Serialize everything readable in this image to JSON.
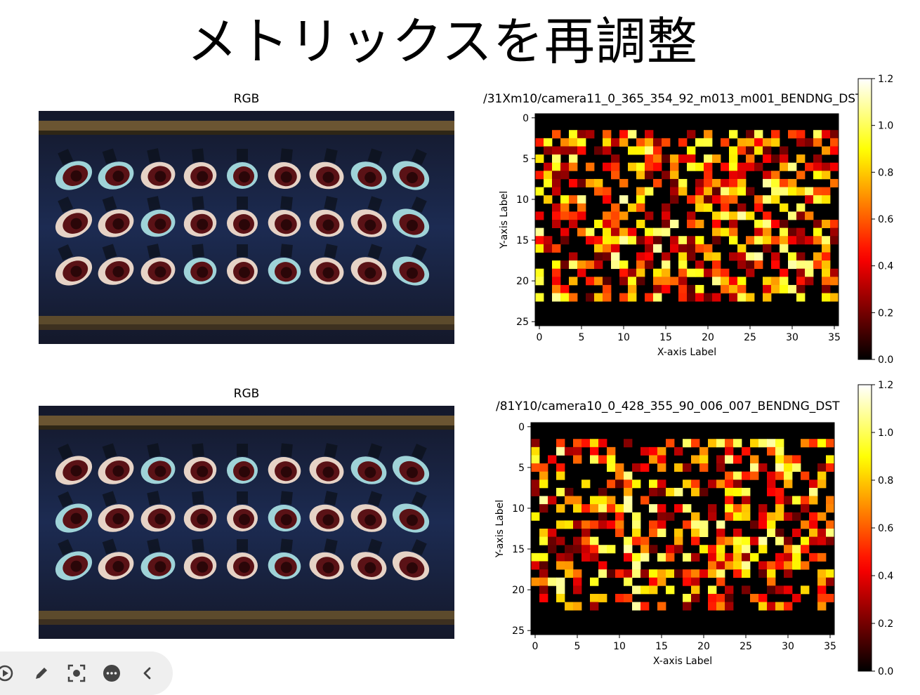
{
  "slide": {
    "title": "メトリックスを再調整"
  },
  "panels": [
    {
      "rgb_label": "RGB",
      "heatmap_title": "/31Xm10/camera11_0_365_354_92_m013_m001_BENDNG_DST"
    },
    {
      "rgb_label": "RGB",
      "heatmap_title": "/81Y10/camera10_0_428_355_90_006_007_BENDNG_DST"
    }
  ],
  "chart_data": [
    {
      "type": "heatmap",
      "title": "/31Xm10/camera11_0_365_354_92_m013_m001_BENDNG_DST",
      "xlabel": "X-axis Label",
      "ylabel": "Y-axis Label",
      "x_ticks": [
        "0",
        "5",
        "10",
        "15",
        "20",
        "25",
        "30",
        "35"
      ],
      "y_ticks": [
        "0",
        "5",
        "10",
        "15",
        "20",
        "25"
      ],
      "xlim": [
        -0.5,
        35.5
      ],
      "ylim": [
        25.5,
        -0.5
      ],
      "colormap": "hot",
      "colorbar": {
        "min": 0.0,
        "max": 1.2,
        "ticks": [
          "0.0",
          "0.2",
          "0.4",
          "0.6",
          "0.8",
          "1.0",
          "1.2"
        ]
      },
      "grid": false
    },
    {
      "type": "heatmap",
      "title": "/81Y10/camera10_0_428_355_90_006_007_BENDNG_DST",
      "xlabel": "X-axis Label",
      "ylabel": "Y-axis Label",
      "x_ticks": [
        "0",
        "5",
        "10",
        "15",
        "20",
        "25",
        "30",
        "35"
      ],
      "y_ticks": [
        "0",
        "5",
        "10",
        "15",
        "20",
        "25"
      ],
      "xlim": [
        -0.5,
        35.5
      ],
      "ylim": [
        25.5,
        -0.5
      ],
      "colormap": "hot",
      "colorbar": {
        "min": 0.0,
        "max": 1.2,
        "ticks": [
          "0.0",
          "0.2",
          "0.4",
          "0.6",
          "0.8",
          "1.0",
          "1.2"
        ]
      },
      "grid": false
    }
  ],
  "toolbar": {
    "icons": [
      "play-icon",
      "pen-icon",
      "focus-capture-icon",
      "more-icon",
      "chevron-left-icon"
    ]
  }
}
